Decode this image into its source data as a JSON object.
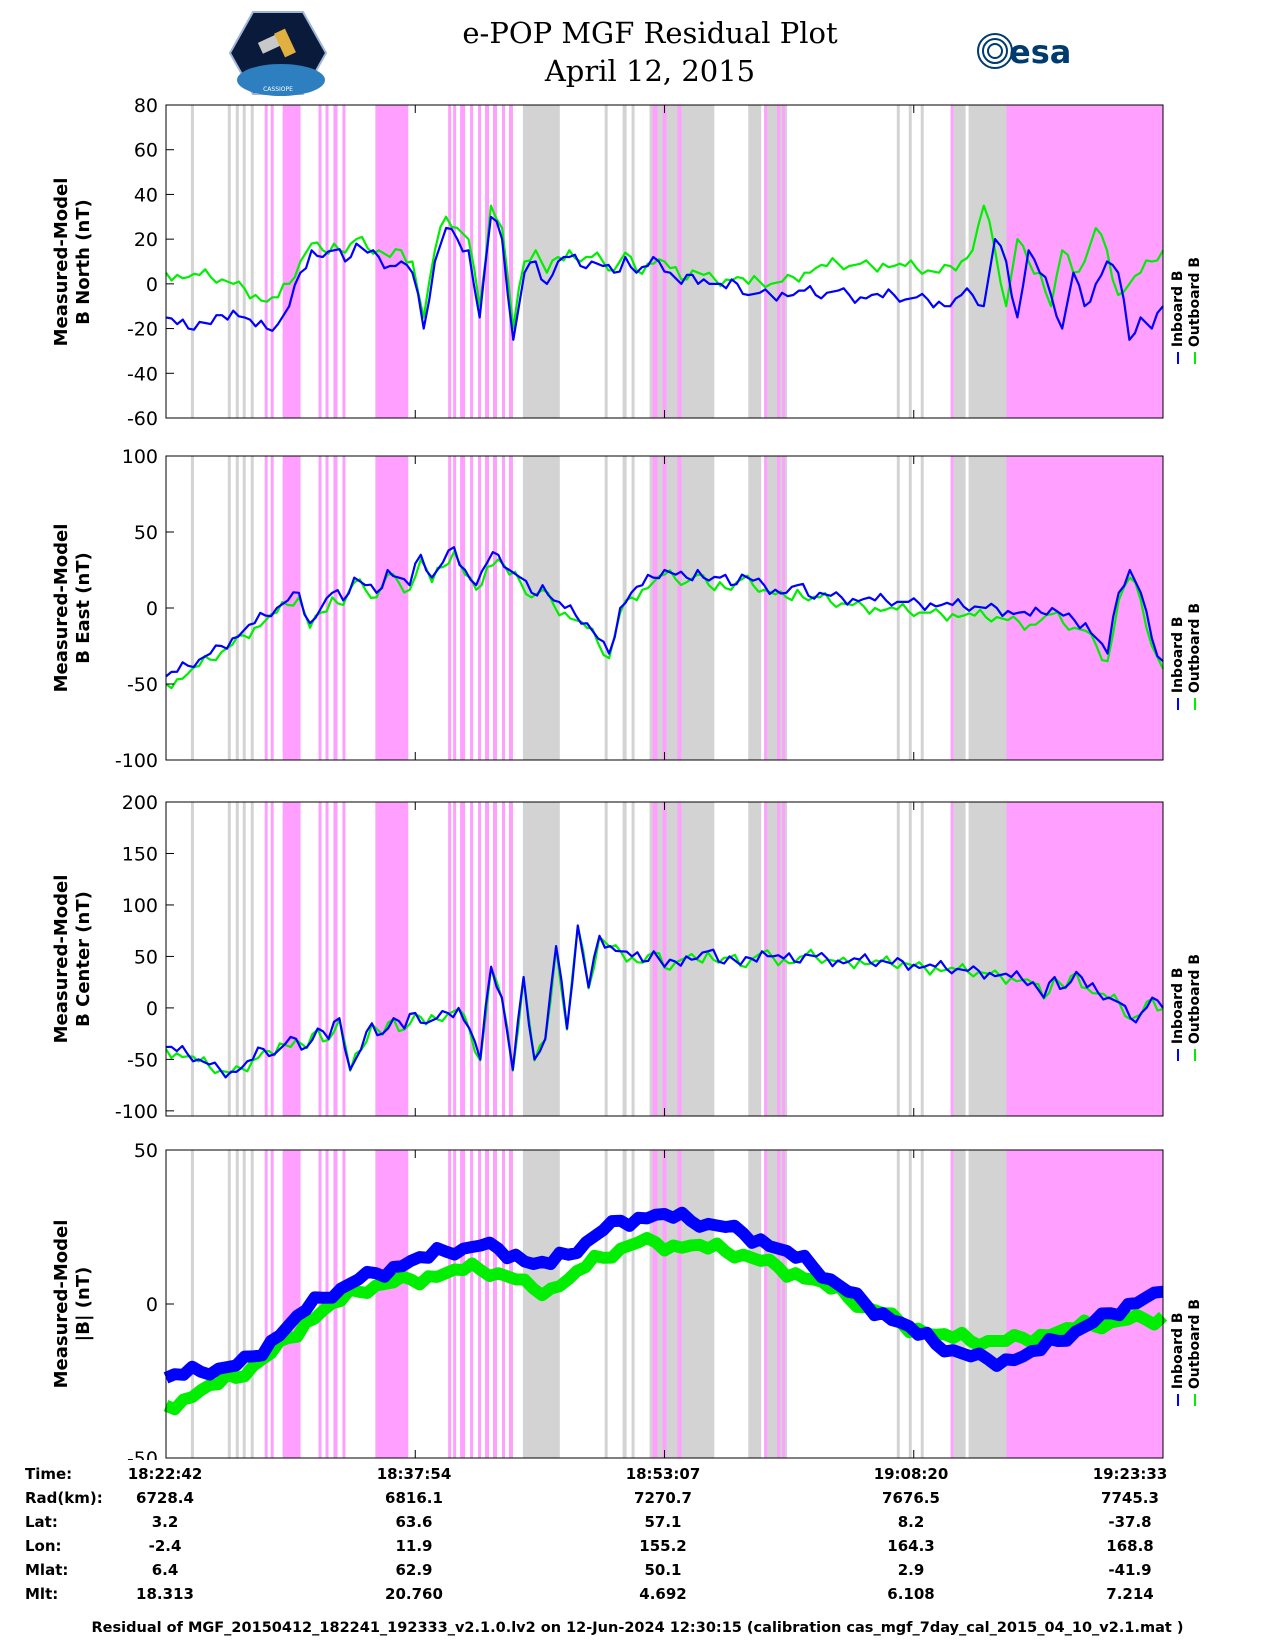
{
  "title": {
    "line1": "e-POP MGF Residual Plot",
    "line2": "April 12, 2015"
  },
  "logos": {
    "left": "cassiope-satellite-logo",
    "left_text": "CASSIOPE",
    "right_text": "esa"
  },
  "colors": {
    "inboard": "#0000ff",
    "outboard": "#00ee00",
    "grey_band": "#d3d3d3",
    "pink_band": "#ff9fff"
  },
  "legend": {
    "inboard": "Inboard B",
    "outboard": "Outboard B"
  },
  "chart_data": [
    {
      "type": "line",
      "name": "north",
      "ylabel": [
        "Measured-Model",
        "B North (nT)"
      ],
      "ylim": [
        -60,
        80
      ],
      "yticks": [
        -60,
        -40,
        -20,
        0,
        20,
        40,
        60,
        80
      ],
      "series": [
        {
          "name": "Inboard B",
          "color": "#0000ff",
          "values": [
            -15,
            -18,
            -20,
            -17,
            -18,
            -14,
            -12,
            -15,
            -19,
            -20,
            -18,
            -10,
            5,
            15,
            12,
            15,
            10,
            18,
            14,
            12,
            8,
            10,
            5,
            -20,
            10,
            25,
            20,
            15,
            -15,
            30,
            20,
            -25,
            5,
            10,
            0,
            10,
            12,
            8,
            10,
            8,
            5,
            12,
            5,
            8,
            10,
            5,
            0,
            4,
            2,
            0,
            -2,
            0,
            -5,
            -4,
            -5,
            -4,
            -5,
            -3,
            -5,
            -4,
            -3,
            -5,
            -6,
            -5,
            -6,
            -5,
            -7,
            -6,
            -7,
            -8,
            -10,
            -5,
            -5,
            -10,
            20,
            10,
            -15,
            15,
            5,
            -5,
            -20,
            5,
            -10,
            0,
            10,
            5,
            -25,
            -15,
            -20,
            -10
          ]
        },
        {
          "name": "Outboard B",
          "color": "#00ee00",
          "values": [
            5,
            4,
            3,
            4,
            3,
            2,
            0,
            -2,
            -5,
            -8,
            -6,
            0,
            10,
            18,
            15,
            18,
            14,
            20,
            16,
            15,
            12,
            15,
            10,
            -15,
            15,
            30,
            25,
            20,
            -10,
            35,
            25,
            -20,
            10,
            15,
            5,
            12,
            15,
            10,
            12,
            10,
            6,
            14,
            6,
            9,
            11,
            7,
            2,
            6,
            4,
            2,
            2,
            3,
            0,
            1,
            0,
            1,
            3,
            5,
            7,
            8,
            9,
            8,
            9,
            8,
            9,
            8,
            8,
            7,
            6,
            5,
            8,
            10,
            15,
            35,
            15,
            -10,
            20,
            10,
            5,
            -10,
            15,
            5,
            10,
            25,
            15,
            -5,
            0,
            5,
            10,
            15
          ]
        }
      ]
    },
    {
      "type": "line",
      "name": "east",
      "ylabel": [
        "Measured-Model",
        "B East (nT)"
      ],
      "ylim": [
        -100,
        100
      ],
      "yticks": [
        -100,
        -50,
        0,
        50,
        100
      ],
      "series": [
        {
          "name": "Inboard B",
          "color": "#0000ff",
          "values": [
            -45,
            -42,
            -38,
            -34,
            -30,
            -25,
            -20,
            -15,
            -10,
            -5,
            0,
            5,
            10,
            -10,
            0,
            10,
            5,
            20,
            15,
            10,
            25,
            20,
            15,
            35,
            20,
            30,
            40,
            25,
            15,
            30,
            35,
            25,
            20,
            10,
            15,
            5,
            0,
            -5,
            -10,
            -20,
            -30,
            0,
            10,
            15,
            20,
            25,
            22,
            20,
            25,
            18,
            20,
            15,
            22,
            18,
            15,
            12,
            10,
            15,
            8,
            10,
            8,
            7,
            6,
            6,
            5,
            5,
            4,
            4,
            3,
            3,
            2,
            2,
            1,
            1,
            0,
            0,
            -2,
            -3,
            -5,
            -3,
            0,
            -5,
            -8,
            -10,
            -20,
            -30,
            10,
            25,
            10,
            -20,
            -35
          ]
        },
        {
          "name": "Outboard B",
          "color": "#00ee00",
          "values": [
            -50,
            -47,
            -43,
            -38,
            -34,
            -29,
            -24,
            -18,
            -13,
            -8,
            -3,
            2,
            7,
            -13,
            -3,
            7,
            2,
            17,
            12,
            7,
            22,
            17,
            12,
            32,
            17,
            27,
            37,
            22,
            12,
            27,
            32,
            22,
            17,
            7,
            12,
            2,
            -3,
            -8,
            -13,
            -23,
            -33,
            -3,
            7,
            12,
            17,
            22,
            19,
            17,
            22,
            15,
            17,
            12,
            19,
            15,
            12,
            9,
            7,
            12,
            5,
            7,
            4,
            3,
            2,
            1,
            0,
            -1,
            -1,
            -2,
            -3,
            -3,
            -4,
            -4,
            -5,
            -5,
            -6,
            -6,
            -8,
            -9,
            -11,
            -8,
            -4,
            -10,
            -13,
            -15,
            -25,
            -35,
            5,
            20,
            5,
            -25,
            -40
          ]
        }
      ]
    },
    {
      "type": "line",
      "name": "center",
      "ylabel": [
        "Measured-Model",
        "B Center (nT)"
      ],
      "ylim": [
        -105,
        200
      ],
      "yticks": [
        -100,
        -50,
        0,
        50,
        100,
        150,
        200
      ],
      "series": [
        {
          "name": "Inboard B",
          "color": "#0000ff",
          "values": [
            -38,
            -42,
            -45,
            -50,
            -55,
            -60,
            -62,
            -58,
            -50,
            -40,
            -45,
            -35,
            -30,
            -38,
            -20,
            -30,
            -10,
            -60,
            -40,
            -15,
            -25,
            -10,
            -20,
            -5,
            -15,
            -10,
            -5,
            0,
            -20,
            -50,
            40,
            10,
            -60,
            30,
            -50,
            -30,
            60,
            -20,
            80,
            20,
            70,
            60,
            55,
            50,
            45,
            55,
            40,
            45,
            50,
            48,
            55,
            45,
            50,
            42,
            48,
            55,
            50,
            48,
            45,
            52,
            50,
            48,
            46,
            45,
            47,
            44,
            46,
            43,
            45,
            42,
            40,
            40,
            38,
            38,
            36,
            36,
            34,
            32,
            30,
            28,
            25,
            10,
            30,
            20,
            35,
            20,
            15,
            10,
            5,
            -10,
            -5,
            10,
            0
          ]
        },
        {
          "name": "Outboard B",
          "color": "#00ee00",
          "values": [
            -40,
            -44,
            -47,
            -52,
            -57,
            -61,
            -63,
            -59,
            -51,
            -42,
            -46,
            -36,
            -31,
            -39,
            -21,
            -31,
            -11,
            -61,
            -41,
            -16,
            -26,
            -11,
            -21,
            -6,
            -16,
            -11,
            -6,
            -1,
            -21,
            -51,
            39,
            9,
            -61,
            29,
            -51,
            -31,
            59,
            -21,
            79,
            19,
            69,
            59,
            54,
            49,
            44,
            54,
            39,
            44,
            49,
            47,
            54,
            44,
            49,
            41,
            47,
            54,
            49,
            47,
            44,
            51,
            49,
            47,
            45,
            44,
            46,
            43,
            45,
            42,
            44,
            41,
            39,
            39,
            37,
            37,
            35,
            35,
            33,
            31,
            29,
            27,
            24,
            9,
            29,
            19,
            34,
            19,
            14,
            9,
            4,
            -11,
            -6,
            9,
            -1
          ]
        }
      ]
    },
    {
      "type": "line",
      "name": "magnitude",
      "ylabel": [
        "Measured-Model",
        "|B| (nT)"
      ],
      "ylim": [
        -50,
        50
      ],
      "yticks": [
        -50,
        0,
        50
      ],
      "series": [
        {
          "name": "Inboard B",
          "color": "#0000ff",
          "values": [
            -24,
            -23,
            -22,
            -21,
            -20,
            -17,
            -12,
            -7,
            -2,
            2,
            5,
            8,
            10,
            12,
            14,
            15,
            17,
            18,
            19,
            18,
            16,
            13,
            13,
            16,
            20,
            24,
            27,
            28,
            29,
            28,
            27,
            26,
            25,
            23,
            21,
            18,
            15,
            12,
            8,
            4,
            0,
            -3,
            -6,
            -10,
            -13,
            -15,
            -17,
            -18,
            -18,
            -17,
            -15,
            -12,
            -9,
            -6,
            -3,
            0,
            2,
            4
          ]
        },
        {
          "name": "Outboard B",
          "color": "#00ee00",
          "values": [
            -33,
            -31,
            -28,
            -26,
            -24,
            -20,
            -16,
            -11,
            -6,
            -2,
            1,
            4,
            6,
            7,
            8,
            9,
            10,
            11,
            11,
            10,
            8,
            5,
            5,
            8,
            12,
            15,
            18,
            20,
            20,
            19,
            19,
            18,
            17,
            16,
            14,
            12,
            10,
            8,
            5,
            2,
            -1,
            -3,
            -6,
            -8,
            -10,
            -11,
            -12,
            -12,
            -12,
            -11,
            -10,
            -9,
            -8,
            -7,
            -6,
            -5,
            -5,
            -4
          ]
        }
      ]
    }
  ],
  "bands": {
    "grey": [
      [
        0.025,
        0.028
      ],
      [
        0.062,
        0.065
      ],
      [
        0.07,
        0.073
      ],
      [
        0.077,
        0.08
      ],
      [
        0.085,
        0.088
      ],
      [
        0.358,
        0.395
      ],
      [
        0.44,
        0.443
      ],
      [
        0.458,
        0.462
      ],
      [
        0.467,
        0.47
      ],
      [
        0.485,
        0.55
      ],
      [
        0.584,
        0.597
      ],
      [
        0.6,
        0.623
      ],
      [
        0.733,
        0.736
      ],
      [
        0.745,
        0.748
      ],
      [
        0.757,
        0.76
      ],
      [
        0.79,
        0.802
      ],
      [
        0.805,
        0.843
      ]
    ],
    "pink": [
      [
        0.099,
        0.102
      ],
      [
        0.105,
        0.108
      ],
      [
        0.117,
        0.135
      ],
      [
        0.153,
        0.156
      ],
      [
        0.16,
        0.163
      ],
      [
        0.168,
        0.172
      ],
      [
        0.177,
        0.18
      ],
      [
        0.21,
        0.243
      ],
      [
        0.283,
        0.286
      ],
      [
        0.288,
        0.291
      ],
      [
        0.295,
        0.3
      ],
      [
        0.305,
        0.308
      ],
      [
        0.313,
        0.316
      ],
      [
        0.32,
        0.324
      ],
      [
        0.328,
        0.332
      ],
      [
        0.337,
        0.34
      ],
      [
        0.344,
        0.348
      ],
      [
        0.488,
        0.493
      ],
      [
        0.498,
        0.502
      ],
      [
        0.513,
        0.517
      ],
      [
        0.6,
        0.603
      ],
      [
        0.613,
        0.616
      ],
      [
        0.618,
        0.621
      ],
      [
        0.787,
        0.79
      ],
      [
        0.843,
        1.0
      ]
    ]
  },
  "xaxis": {
    "ticks": [
      0,
      0.25,
      0.5,
      0.75,
      1.0
    ]
  },
  "info": {
    "labels": [
      "Time:",
      "Rad(km):",
      "Lat:",
      "Lon:",
      "Mlat:",
      "Mlt:"
    ],
    "columns": [
      [
        "18:22:42",
        "6728.4",
        "3.2",
        "-2.4",
        "6.4",
        "18.313"
      ],
      [
        "18:37:54",
        "6816.1",
        "63.6",
        "11.9",
        "62.9",
        "20.760"
      ],
      [
        "18:53:07",
        "7270.7",
        "57.1",
        "155.2",
        "50.1",
        "4.692"
      ],
      [
        "19:08:20",
        "7676.5",
        "8.2",
        "164.3",
        "2.9",
        "6.108"
      ],
      [
        "19:23:33",
        "7745.3",
        "-37.8",
        "168.8",
        "-41.9",
        "7.214"
      ]
    ]
  },
  "footer": "Residual of MGF_20150412_182241_192333_v2.1.0.lv2 on 12-Jun-2024 12:30:15 (calibration cas_mgf_7day_cal_2015_04_10_v2.1.mat )"
}
